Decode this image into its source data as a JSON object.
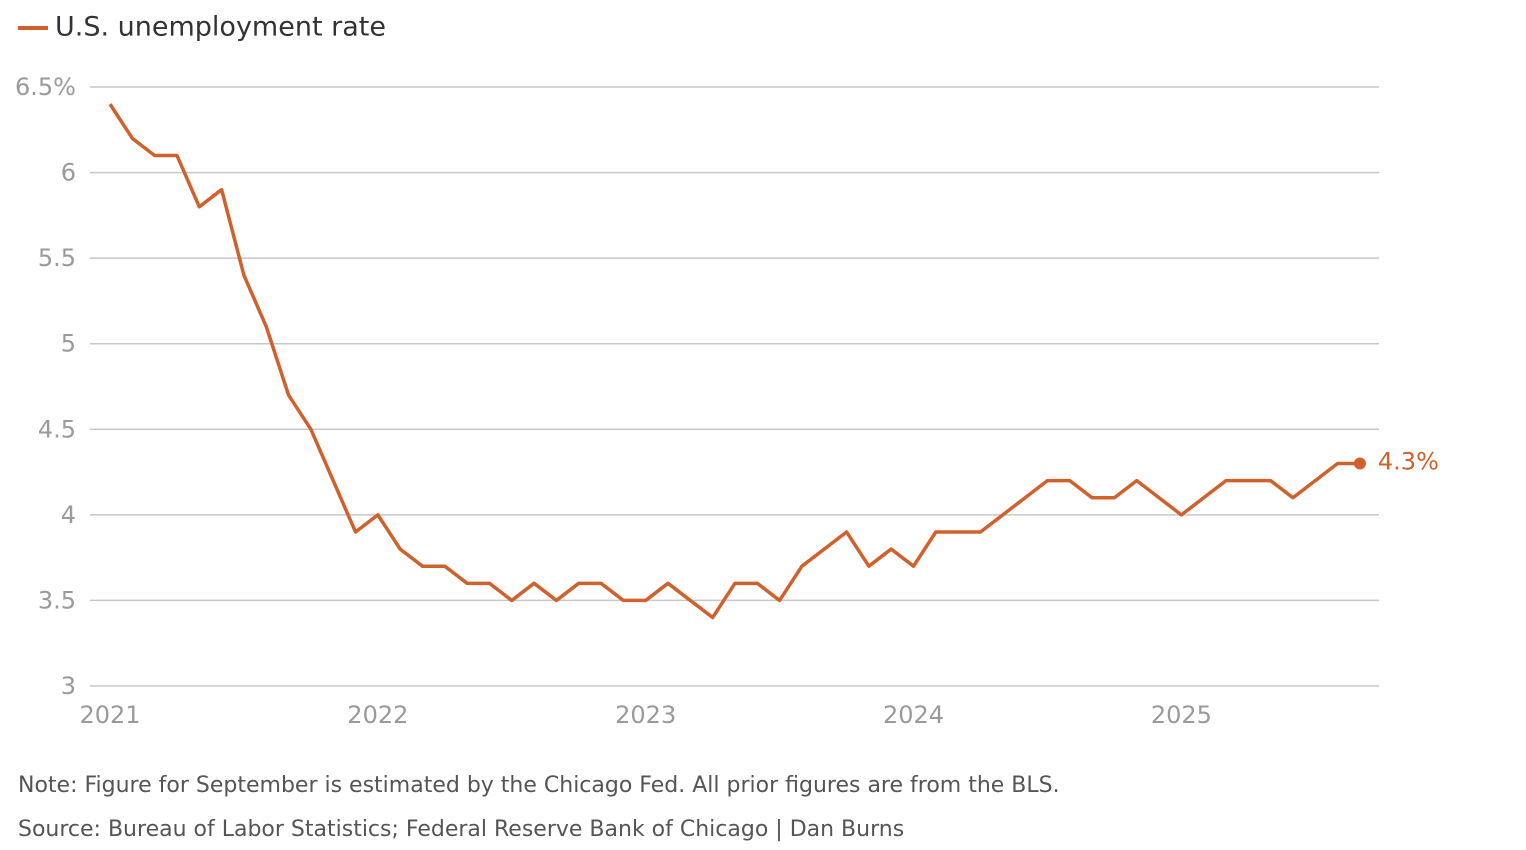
{
  "chart_data": {
    "type": "line",
    "categories": [
      "2021",
      null,
      null,
      null,
      null,
      null,
      null,
      null,
      null,
      null,
      null,
      null,
      "2022",
      null,
      null,
      null,
      null,
      null,
      null,
      null,
      null,
      null,
      null,
      null,
      "2023",
      null,
      null,
      null,
      null,
      null,
      null,
      null,
      null,
      null,
      null,
      null,
      "2024",
      null,
      null,
      null,
      null,
      null,
      null,
      null,
      null,
      null,
      null,
      null,
      "2025",
      null,
      null,
      null,
      null,
      null,
      null,
      null,
      null
    ],
    "series": [
      {
        "name": "U.S. unemployment rate",
        "color": "#d0612d",
        "values": [
          6.4,
          6.2,
          6.1,
          6.1,
          5.8,
          5.9,
          5.4,
          5.1,
          4.7,
          4.5,
          4.2,
          3.9,
          4.0,
          3.8,
          3.7,
          3.7,
          3.6,
          3.6,
          3.5,
          3.6,
          3.5,
          3.6,
          3.6,
          3.5,
          3.5,
          3.6,
          3.5,
          3.4,
          3.6,
          3.6,
          3.5,
          3.7,
          3.8,
          3.9,
          3.7,
          3.8,
          3.7,
          3.9,
          3.9,
          3.9,
          4.0,
          4.1,
          4.2,
          4.2,
          4.1,
          4.1,
          4.2,
          4.1,
          4.0,
          4.1,
          4.2,
          4.2,
          4.2,
          4.1,
          4.2,
          4.3,
          4.3
        ],
        "value_labels": [
          null,
          null,
          null,
          null,
          null,
          null,
          null,
          null,
          null,
          null,
          null,
          null,
          null,
          null,
          null,
          null,
          null,
          null,
          null,
          null,
          null,
          null,
          null,
          null,
          null,
          null,
          null,
          null,
          null,
          null,
          null,
          null,
          null,
          null,
          null,
          null,
          null,
          null,
          null,
          null,
          null,
          null,
          null,
          null,
          null,
          null,
          null,
          null,
          null,
          null,
          null,
          null,
          null,
          null,
          null,
          null,
          "4.3%"
        ]
      }
    ],
    "ylim": [
      3,
      6.5
    ],
    "yticks": [
      3,
      3.5,
      4,
      4.5,
      5,
      5.5,
      6,
      {
        "value": 6.5,
        "label": "6.5%"
      }
    ],
    "grid": true,
    "note": "Note: Figure for September is estimated by the Chicago Fed. All prior figures are from the BLS.",
    "source": "Source: Bureau of Labor Statistics; Federal Reserve Bank of Chicago | Dan Burns"
  }
}
